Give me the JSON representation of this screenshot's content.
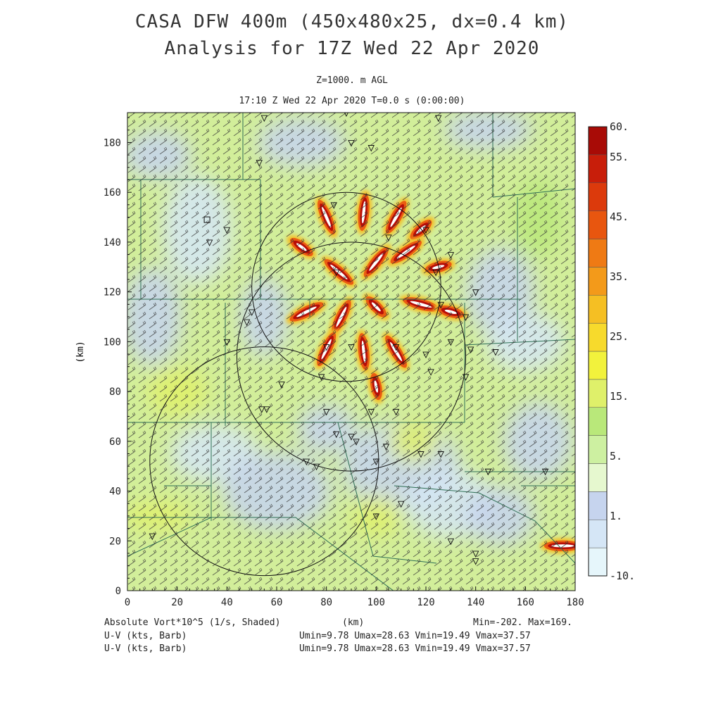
{
  "header": {
    "title_line1": "CASA DFW 400m (450x480x25, dx=0.4 km)",
    "title_line2": "Analysis for 17Z Wed 22 Apr 2020",
    "level": "Z=1000. m AGL",
    "time": "17:10 Z Wed 22 Apr 2020    T=0.0 s (0:00:00)"
  },
  "footer": {
    "field": "Absolute Vort*10^5 (1/s, Shaded)",
    "xunit": "(km)",
    "minmax": "Min=-202. Max=169.",
    "barb1_label": "U-V (kts, Barb)",
    "barb1_stats": "Umin=9.78 Umax=28.63 Vmin=19.49 Vmax=37.57",
    "barb2_label": "U-V (kts, Barb)",
    "barb2_stats": "Umin=9.78 Umax=28.63 Vmin=19.49 Vmax=37.57"
  },
  "chart_data": {
    "type": "heatmap",
    "xlabel": "(km)",
    "ylabel": "(km)",
    "xlim": [
      0,
      180
    ],
    "ylim": [
      0,
      192
    ],
    "xticks": [
      0,
      20,
      40,
      60,
      80,
      100,
      120,
      140,
      160,
      180
    ],
    "yticks": [
      0,
      20,
      40,
      60,
      80,
      100,
      120,
      140,
      160,
      180
    ],
    "colorbar": {
      "levels": [
        -10,
        1,
        5,
        15,
        25,
        35,
        45,
        55,
        60
      ],
      "tick_labels": [
        "60.",
        "55.",
        "45.",
        "35.",
        "25.",
        "15.",
        "5.",
        "1.",
        "-10."
      ],
      "colors": [
        "#e6f6fb",
        "#d5e6f6",
        "#c6d4ee",
        "#e6f8cf",
        "#cdf0a1",
        "#b9e87a",
        "#dff06a",
        "#f2f23c",
        "#f7da2c",
        "#f5bf23",
        "#f39a1a",
        "#ef7a14",
        "#e8560f",
        "#dc3a0c",
        "#c81e0a",
        "#a80b06"
      ]
    },
    "radar_rings": [
      {
        "center": [
          88,
          122
        ],
        "radius": 38
      },
      {
        "center": [
          90,
          94
        ],
        "radius": 46
      },
      {
        "center": [
          55,
          52
        ],
        "radius": 46
      }
    ],
    "vorticity_hotspots": [
      {
        "x": 80,
        "y": 150,
        "value": 55
      },
      {
        "x": 95,
        "y": 152,
        "value": 58
      },
      {
        "x": 108,
        "y": 150,
        "value": 55
      },
      {
        "x": 118,
        "y": 145,
        "value": 50
      },
      {
        "x": 70,
        "y": 138,
        "value": 52
      },
      {
        "x": 85,
        "y": 128,
        "value": 58
      },
      {
        "x": 100,
        "y": 132,
        "value": 55
      },
      {
        "x": 112,
        "y": 136,
        "value": 58
      },
      {
        "x": 125,
        "y": 130,
        "value": 50
      },
      {
        "x": 72,
        "y": 112,
        "value": 55
      },
      {
        "x": 86,
        "y": 110,
        "value": 58
      },
      {
        "x": 100,
        "y": 114,
        "value": 52
      },
      {
        "x": 118,
        "y": 115,
        "value": 55
      },
      {
        "x": 130,
        "y": 112,
        "value": 45
      },
      {
        "x": 80,
        "y": 97,
        "value": 58
      },
      {
        "x": 95,
        "y": 96,
        "value": 55
      },
      {
        "x": 108,
        "y": 96,
        "value": 55
      },
      {
        "x": 100,
        "y": 82,
        "value": 40
      },
      {
        "x": 175,
        "y": 18,
        "value": 58
      }
    ],
    "radar_sites": [
      [
        55,
        190
      ],
      [
        88,
        192
      ],
      [
        125,
        190
      ],
      [
        90,
        180
      ],
      [
        98,
        178
      ],
      [
        53,
        172
      ],
      [
        83,
        155
      ],
      [
        40,
        145
      ],
      [
        33,
        140
      ],
      [
        120,
        145
      ],
      [
        105,
        142
      ],
      [
        130,
        135
      ],
      [
        84,
        128
      ],
      [
        124,
        128
      ],
      [
        126,
        115
      ],
      [
        136,
        110
      ],
      [
        140,
        120
      ],
      [
        50,
        112
      ],
      [
        48,
        108
      ],
      [
        40,
        100
      ],
      [
        80,
        98
      ],
      [
        90,
        98
      ],
      [
        108,
        98
      ],
      [
        120,
        95
      ],
      [
        130,
        100
      ],
      [
        138,
        97
      ],
      [
        148,
        96
      ],
      [
        122,
        88
      ],
      [
        136,
        86
      ],
      [
        78,
        86
      ],
      [
        62,
        83
      ],
      [
        54,
        73
      ],
      [
        56,
        73
      ],
      [
        98,
        72
      ],
      [
        108,
        72
      ],
      [
        80,
        72
      ],
      [
        84,
        63
      ],
      [
        90,
        62
      ],
      [
        92,
        60
      ],
      [
        104,
        58
      ],
      [
        126,
        55
      ],
      [
        118,
        55
      ],
      [
        72,
        52
      ],
      [
        76,
        50
      ],
      [
        100,
        52
      ],
      [
        145,
        48
      ],
      [
        168,
        48
      ],
      [
        10,
        22
      ],
      [
        100,
        30
      ],
      [
        110,
        35
      ],
      [
        140,
        15
      ],
      [
        130,
        20
      ],
      [
        140,
        12
      ]
    ],
    "squares": [
      [
        32,
        149
      ]
    ]
  }
}
